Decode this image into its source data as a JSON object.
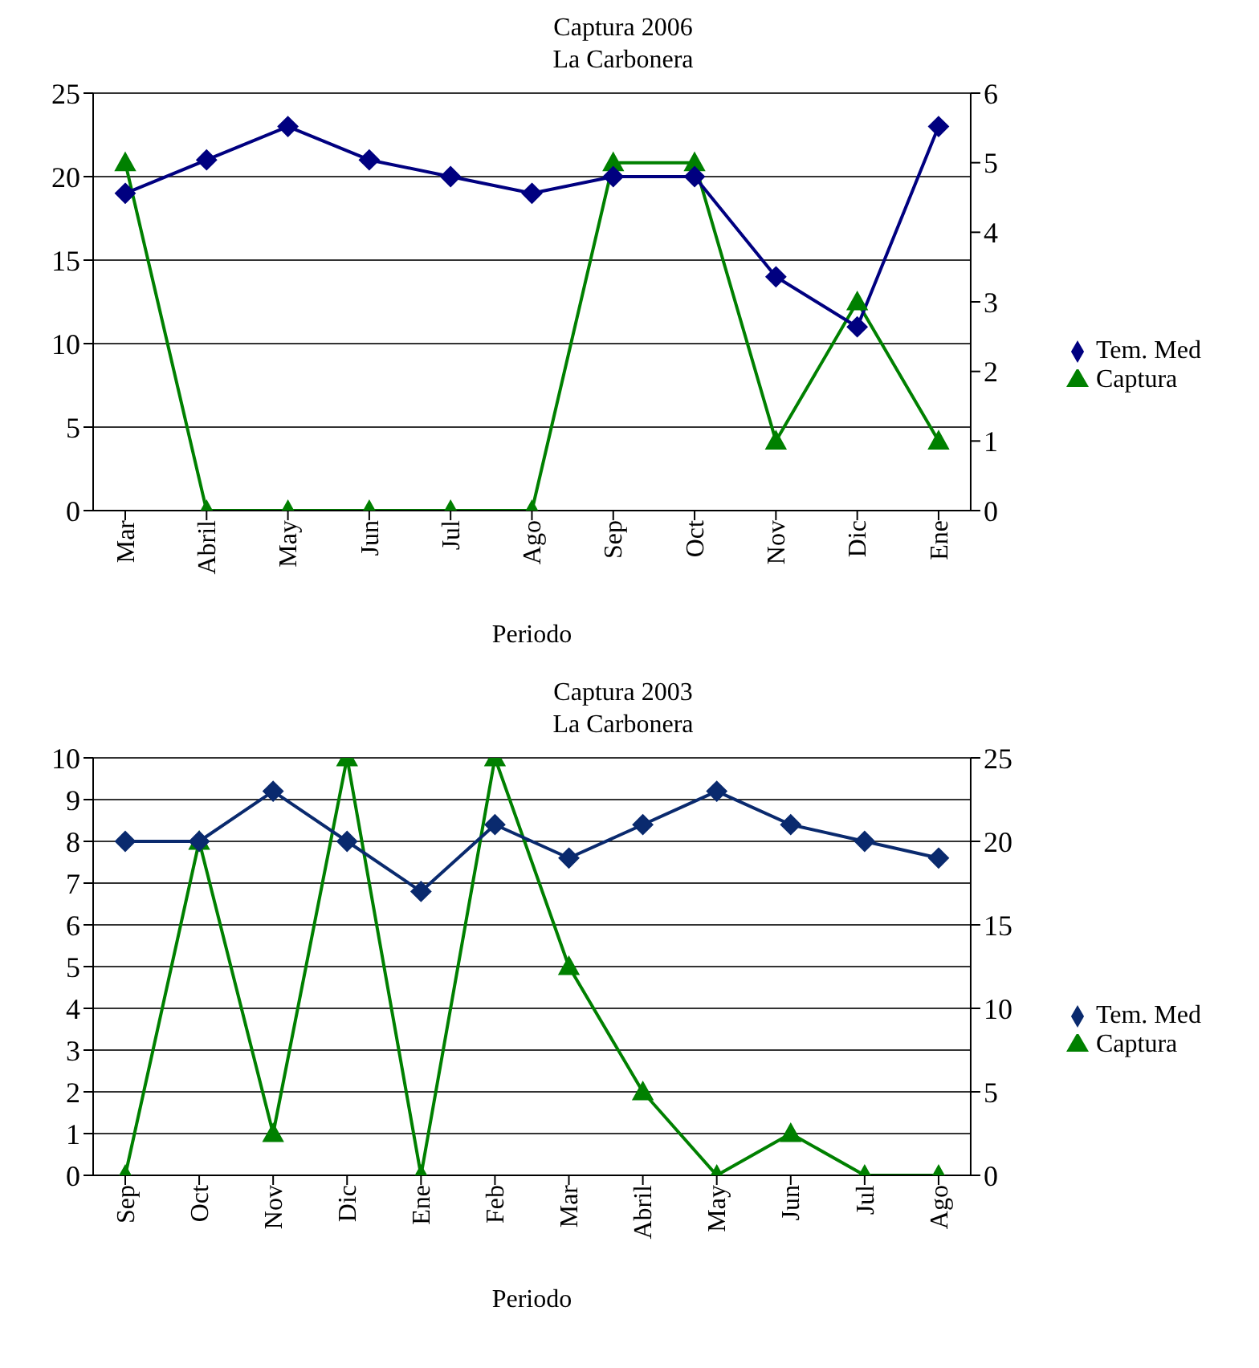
{
  "chart_data": [
    {
      "type": "line",
      "title": "Captura 2006",
      "subtitle": "La Carbonera",
      "xlabel": "Periodo",
      "categories": [
        "Mar",
        "Abril",
        "May",
        "Jun",
        "Jul",
        "Ago",
        "Sep",
        "Oct",
        "Nov",
        "Dic",
        "Ene"
      ],
      "series": [
        {
          "name": "Tem. Med",
          "color": "#000080",
          "marker": "diamond",
          "values": [
            19,
            21,
            23,
            21,
            20,
            19,
            20,
            20,
            14,
            11,
            23
          ]
        },
        {
          "name": "Captura",
          "color": "#008000",
          "marker": "triangle",
          "axis": "y2",
          "values": [
            5,
            0,
            0,
            0,
            0,
            0,
            5,
            5,
            1,
            3,
            1
          ]
        }
      ],
      "ylim": [
        0,
        25
      ],
      "yticks": [
        0,
        5,
        10,
        15,
        20,
        25
      ],
      "y2lim": [
        0,
        6
      ],
      "y2ticks": [
        0,
        1,
        2,
        3,
        4,
        5,
        6
      ],
      "grid": "y",
      "legend": "right"
    },
    {
      "type": "line",
      "title": "Captura 2003",
      "subtitle": "La Carbonera",
      "xlabel": "Periodo",
      "categories": [
        "Sep",
        "Oct",
        "Nov",
        "Dic",
        "Ene",
        "Feb",
        "Mar",
        "Abril",
        "May",
        "Jun",
        "Jul",
        "Ago"
      ],
      "series": [
        {
          "name": "Tem. Med",
          "color": "#0a2a6e",
          "marker": "diamond",
          "values": [
            8,
            8,
            9.2,
            8,
            6.8,
            8.4,
            7.6,
            8.4,
            9.2,
            8.4,
            8,
            7.6
          ]
        },
        {
          "name": "Captura",
          "color": "#008000",
          "marker": "triangle",
          "axis": "y2",
          "values": [
            0,
            20,
            2.5,
            25,
            0,
            25,
            12.5,
            5,
            0,
            2.5,
            0,
            0
          ]
        }
      ],
      "ylim": [
        0,
        10
      ],
      "yticks": [
        0,
        1,
        2,
        3,
        4,
        5,
        6,
        7,
        8,
        9,
        10
      ],
      "y2lim": [
        0,
        25
      ],
      "y2ticks": [
        0,
        5,
        10,
        15,
        20,
        25
      ],
      "grid": "y",
      "legend": "right"
    }
  ]
}
